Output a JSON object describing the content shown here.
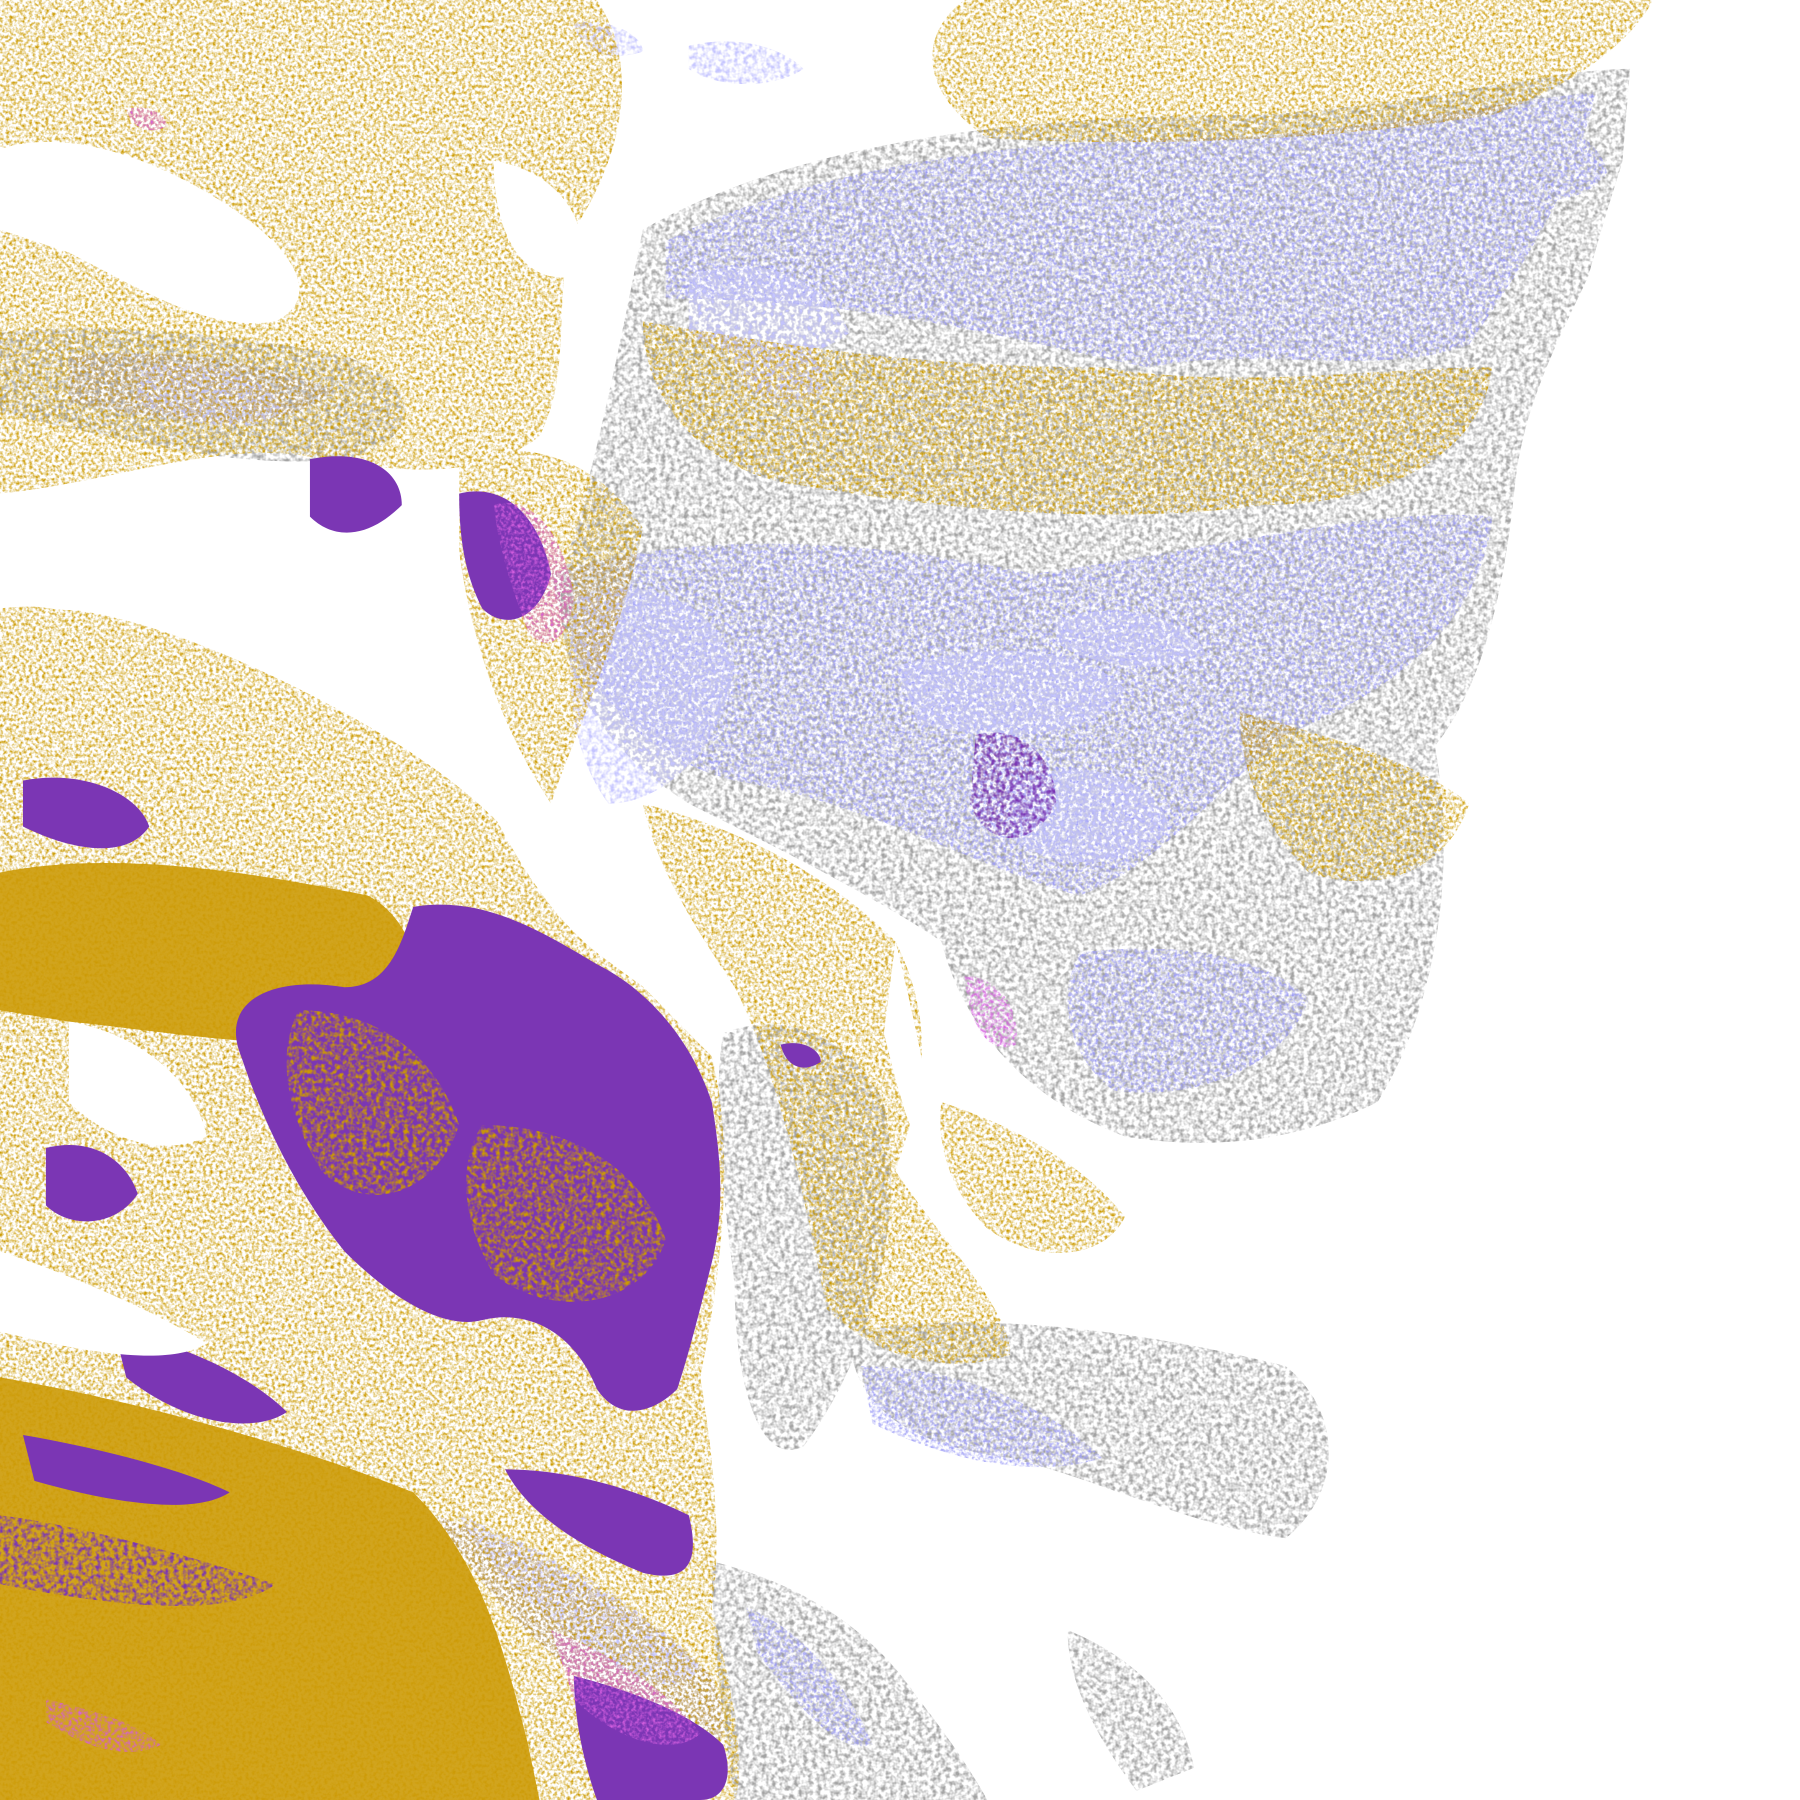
{
  "map": {
    "kind": "classified raster",
    "background": "#ffffff",
    "classes": [
      {
        "id": "gold",
        "color": "#cc9a06"
      },
      {
        "id": "purple",
        "color": "#7b36b4"
      },
      {
        "id": "magenta",
        "color": "#d65fe0"
      },
      {
        "id": "lavender",
        "color": "#c4c4ff"
      },
      {
        "id": "periwinkle",
        "color": "#9c9cf6"
      },
      {
        "id": "gray",
        "color": "#a3a3a3"
      },
      {
        "id": "dark-gray",
        "color": "#8c8c8c"
      }
    ]
  }
}
